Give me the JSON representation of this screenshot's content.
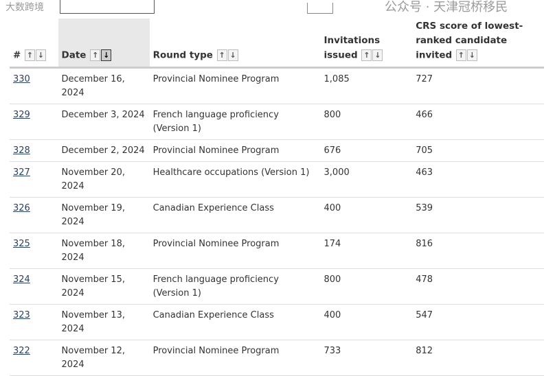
{
  "columns": [
    {
      "label": "#",
      "sort": "none"
    },
    {
      "label": "Date",
      "sort": "desc"
    },
    {
      "label": "Round type",
      "sort": "none"
    },
    {
      "label": "Invitations issued",
      "sort": "none"
    },
    {
      "label": "CRS score of lowest-ranked candidate invited",
      "sort": "none"
    }
  ],
  "rows": [
    {
      "num": "330",
      "date": "December 16, 2024",
      "type": "Provincial Nominee Program",
      "inv": "1,085",
      "crs": "727"
    },
    {
      "num": "329",
      "date": "December 3, 2024",
      "type": "French language proficiency (Version 1)",
      "inv": "800",
      "crs": "466"
    },
    {
      "num": "328",
      "date": "December 2, 2024",
      "type": "Provincial Nominee Program",
      "inv": "676",
      "crs": "705"
    },
    {
      "num": "327",
      "date": "November 20, 2024",
      "type": "Healthcare occupations (Version 1)",
      "inv": "3,000",
      "crs": "463"
    },
    {
      "num": "326",
      "date": "November 19, 2024",
      "type": "Canadian Experience Class",
      "inv": "400",
      "crs": "539"
    },
    {
      "num": "325",
      "date": "November 18, 2024",
      "type": "Provincial Nominee Program",
      "inv": "174",
      "crs": "816"
    },
    {
      "num": "324",
      "date": "November 15, 2024",
      "type": "French language proficiency (Version 1)",
      "inv": "800",
      "crs": "478"
    },
    {
      "num": "323",
      "date": "November 13, 2024",
      "type": "Canadian Experience Class",
      "inv": "400",
      "crs": "547"
    },
    {
      "num": "322",
      "date": "November 12, 2024",
      "type": "Provincial Nominee Program",
      "inv": "733",
      "crs": "812"
    }
  ],
  "watermarks": {
    "right": "公众号 · 天津冠桥移民",
    "left": "大数跨境"
  },
  "icons": {
    "sort_up": "arrow-up-icon",
    "sort_down": "arrow-down-icon"
  }
}
